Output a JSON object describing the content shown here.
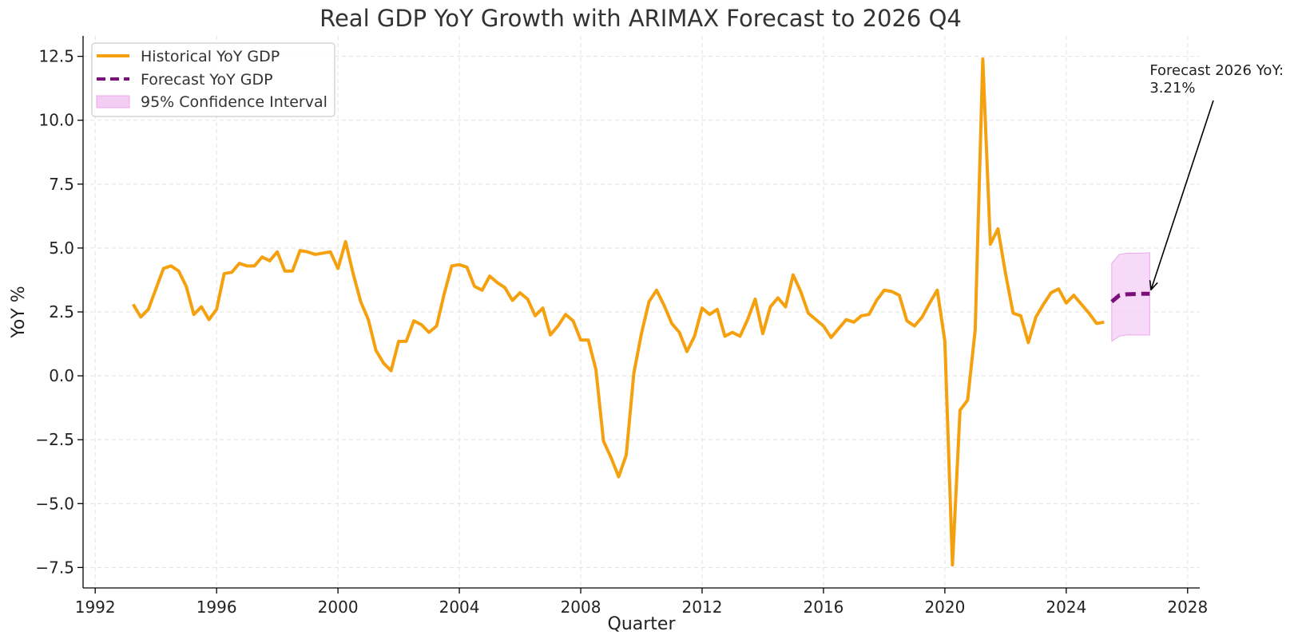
{
  "chart_data": {
    "type": "line",
    "title": "Real GDP YoY Growth with ARIMAX Forecast to 2026 Q4",
    "xlabel": "Quarter",
    "ylabel": "YoY %",
    "xlim": [
      1991.6,
      2028.4
    ],
    "ylim": [
      -8.3,
      13.3
    ],
    "x_ticks": [
      1992,
      1996,
      2000,
      2004,
      2008,
      2012,
      2016,
      2020,
      2024,
      2028
    ],
    "y_ticks": [
      -7.5,
      -5.0,
      -2.5,
      0.0,
      2.5,
      5.0,
      7.5,
      10.0,
      12.5
    ],
    "grid": true,
    "legend_position": "top-left",
    "colors": {
      "historical": "#f5a10f",
      "forecast": "#7b0f7a",
      "ci_fill": "#f4cdf4",
      "ci_edge": "#eba8ee",
      "grid": "#e2e2e2",
      "axis": "#000000"
    },
    "series": [
      {
        "name": "Historical YoY GDP",
        "style": "solid",
        "x": [
          1993.25,
          1993.5,
          1993.75,
          1994.0,
          1994.25,
          1994.5,
          1994.75,
          1995.0,
          1995.25,
          1995.5,
          1995.75,
          1996.0,
          1996.25,
          1996.5,
          1996.75,
          1997.0,
          1997.25,
          1997.5,
          1997.75,
          1998.0,
          1998.25,
          1998.5,
          1998.75,
          1999.0,
          1999.25,
          1999.5,
          1999.75,
          2000.0,
          2000.25,
          2000.5,
          2000.75,
          2001.0,
          2001.25,
          2001.5,
          2001.75,
          2002.0,
          2002.25,
          2002.5,
          2002.75,
          2003.0,
          2003.25,
          2003.5,
          2003.75,
          2004.0,
          2004.25,
          2004.5,
          2004.75,
          2005.0,
          2005.25,
          2005.5,
          2005.75,
          2006.0,
          2006.25,
          2006.5,
          2006.75,
          2007.0,
          2007.25,
          2007.5,
          2007.75,
          2008.0,
          2008.25,
          2008.5,
          2008.75,
          2009.0,
          2009.25,
          2009.5,
          2009.75,
          2010.0,
          2010.25,
          2010.5,
          2010.75,
          2011.0,
          2011.25,
          2011.5,
          2011.75,
          2012.0,
          2012.25,
          2012.5,
          2012.75,
          2013.0,
          2013.25,
          2013.5,
          2013.75,
          2014.0,
          2014.25,
          2014.5,
          2014.75,
          2015.0,
          2015.25,
          2015.5,
          2015.75,
          2016.0,
          2016.25,
          2016.5,
          2016.75,
          2017.0,
          2017.25,
          2017.5,
          2017.75,
          2018.0,
          2018.25,
          2018.5,
          2018.75,
          2019.0,
          2019.25,
          2019.5,
          2019.75,
          2020.0,
          2020.25,
          2020.5,
          2020.75,
          2021.0,
          2021.25,
          2021.5,
          2021.75,
          2022.0,
          2022.25,
          2022.5,
          2022.75,
          2023.0,
          2023.25,
          2023.5,
          2023.75,
          2024.0,
          2024.25,
          2024.5,
          2024.75,
          2025.0,
          2025.25
        ],
        "values": [
          2.8,
          2.3,
          2.6,
          3.4,
          4.2,
          4.3,
          4.1,
          3.5,
          2.4,
          2.7,
          2.2,
          2.6,
          4.0,
          4.05,
          4.4,
          4.3,
          4.3,
          4.65,
          4.5,
          4.85,
          4.1,
          4.1,
          4.9,
          4.85,
          4.75,
          4.8,
          4.85,
          4.2,
          5.25,
          4.0,
          2.9,
          2.2,
          1.0,
          0.5,
          0.2,
          1.35,
          1.35,
          2.15,
          2.0,
          1.7,
          1.95,
          3.2,
          4.3,
          4.35,
          4.25,
          3.5,
          3.35,
          3.9,
          3.65,
          3.45,
          2.95,
          3.25,
          3.0,
          2.35,
          2.65,
          1.6,
          1.95,
          2.4,
          2.15,
          1.4,
          1.4,
          0.25,
          -2.55,
          -3.2,
          -3.95,
          -3.1,
          0.1,
          1.65,
          2.9,
          3.35,
          2.75,
          2.05,
          1.7,
          0.95,
          1.55,
          2.65,
          2.4,
          2.6,
          1.55,
          1.7,
          1.55,
          2.2,
          3.0,
          1.65,
          2.7,
          3.05,
          2.7,
          3.95,
          3.3,
          2.45,
          2.2,
          1.95,
          1.5,
          1.85,
          2.2,
          2.1,
          2.35,
          2.4,
          2.95,
          3.35,
          3.3,
          3.15,
          2.15,
          1.95,
          2.3,
          2.85,
          3.35,
          1.35,
          -7.4,
          -1.35,
          -0.95,
          1.8,
          12.4,
          5.15,
          5.75,
          4.0,
          2.45,
          2.35,
          1.3,
          2.3,
          2.8,
          3.25,
          3.4,
          2.85,
          3.15,
          2.8,
          2.45,
          2.05,
          2.1
        ]
      },
      {
        "name": "Forecast YoY GDP",
        "style": "dashed",
        "x": [
          2025.5,
          2025.75,
          2026.0,
          2026.25,
          2026.5,
          2026.75
        ],
        "values": [
          2.9,
          3.15,
          3.19,
          3.2,
          3.21,
          3.21
        ]
      }
    ],
    "confidence_interval": {
      "name": "95% Confidence Interval",
      "x": [
        2025.5,
        2025.75,
        2026.0,
        2026.25,
        2026.5,
        2026.75
      ],
      "lower": [
        1.35,
        1.55,
        1.6,
        1.6,
        1.6,
        1.6
      ],
      "upper": [
        4.4,
        4.75,
        4.8,
        4.8,
        4.8,
        4.82
      ]
    },
    "annotation": {
      "text_lines": [
        "Forecast 2026 YoY:",
        "3.21%"
      ],
      "point": [
        2026.75,
        3.21
      ],
      "text_anchor": [
        2026.75,
        11.15
      ]
    }
  }
}
